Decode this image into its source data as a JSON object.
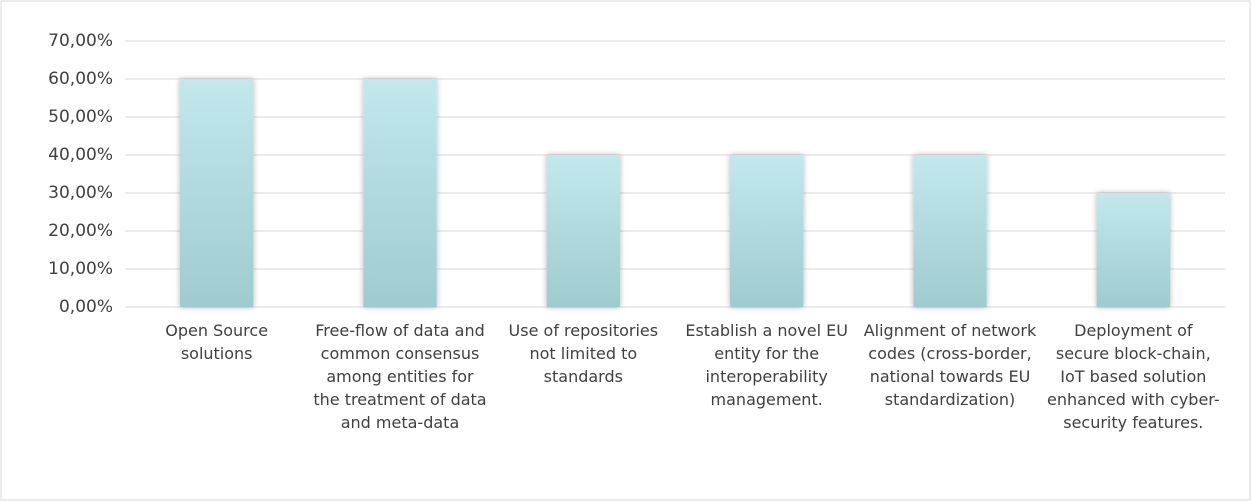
{
  "chart_data": {
    "type": "bar",
    "categories": [
      "Open Source solutions",
      "Free-flow of data and common consensus among entities for the treatment of data and meta-data",
      "Use of repositories not limited to standards",
      "Establish a novel EU entity for the interoperability management.",
      "Alignment of network codes (cross-border, national towards EU standardization)",
      "Deployment of secure block-chain, IoT based solution enhanced with cyber-security features."
    ],
    "values": [
      60,
      60,
      40,
      40,
      40,
      30
    ],
    "color": "#b9e0e4",
    "ylim": [
      0,
      70
    ],
    "yticks": [
      {
        "value": 0,
        "label": "0,00%"
      },
      {
        "value": 10,
        "label": "10,00%"
      },
      {
        "value": 20,
        "label": "20,00%"
      },
      {
        "value": 30,
        "label": "30,00%"
      },
      {
        "value": 40,
        "label": "40,00%"
      },
      {
        "value": 50,
        "label": "50,00%"
      },
      {
        "value": 60,
        "label": "60,00%"
      },
      {
        "value": 70,
        "label": "70,00%"
      }
    ],
    "grid": true
  }
}
